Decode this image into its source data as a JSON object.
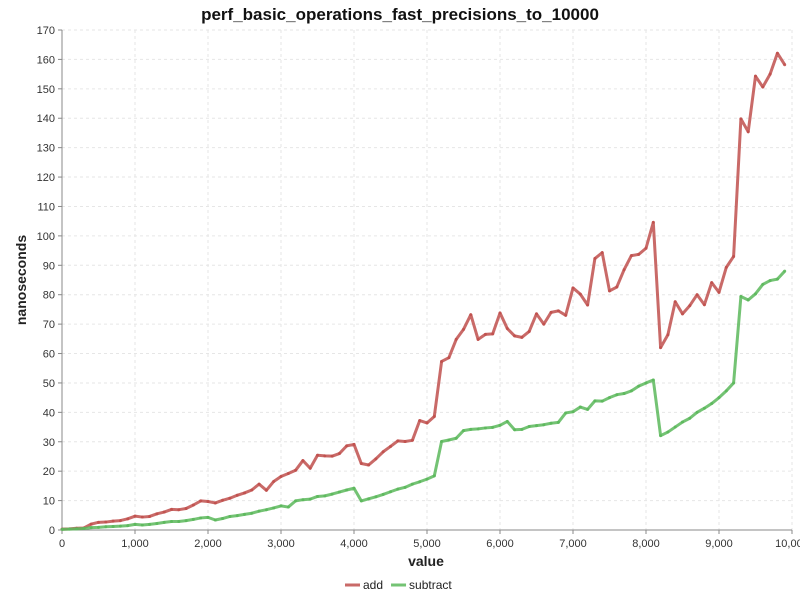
{
  "chart_data": {
    "type": "line",
    "title": "perf_basic_operations_fast_precisions_to_10000",
    "xlabel": "value",
    "ylabel": "nanoseconds",
    "xlim": [
      0,
      10000
    ],
    "ylim": [
      0,
      170
    ],
    "x_ticks": [
      "0",
      "1,000",
      "2,000",
      "3,000",
      "4,000",
      "5,000",
      "6,000",
      "7,000",
      "8,000",
      "9,000",
      "10,000"
    ],
    "y_ticks": [
      "0",
      "10",
      "20",
      "30",
      "40",
      "50",
      "60",
      "70",
      "80",
      "90",
      "100",
      "110",
      "120",
      "130",
      "140",
      "150",
      "160",
      "170"
    ],
    "grid": true,
    "legend_position": "bottom",
    "x": [
      0,
      100,
      200,
      300,
      400,
      500,
      600,
      700,
      800,
      900,
      1000,
      1100,
      1200,
      1300,
      1400,
      1500,
      1600,
      1700,
      1800,
      1900,
      2000,
      2100,
      2200,
      2300,
      2400,
      2500,
      2600,
      2700,
      2800,
      2900,
      3000,
      3100,
      3200,
      3300,
      3400,
      3500,
      3600,
      3700,
      3800,
      3900,
      4000,
      4100,
      4200,
      4300,
      4400,
      4500,
      4600,
      4700,
      4800,
      4900,
      5000,
      5100,
      5200,
      5300,
      5400,
      5500,
      5600,
      5700,
      5800,
      5900,
      6000,
      6100,
      6200,
      6300,
      6400,
      6500,
      6600,
      6700,
      6800,
      6900,
      7000,
      7100,
      7200,
      7300,
      7400,
      7500,
      7600,
      7700,
      7800,
      7900,
      8000,
      8100,
      8200,
      8300,
      8400,
      8500,
      8600,
      8700,
      8800,
      8900,
      9000,
      9100,
      9200,
      9300,
      9400,
      9500,
      9600,
      9700,
      9800,
      9900
    ],
    "series": [
      {
        "name": "add",
        "color": "#c0504d",
        "values": [
          0.3,
          0.4,
          0.6,
          0.7,
          2,
          2.6,
          2.7,
          3,
          3.2,
          3.8,
          4.7,
          4.4,
          4.6,
          5.5,
          6.1,
          7,
          6.9,
          7.3,
          8.5,
          9.9,
          9.7,
          9.2,
          10.1,
          10.8,
          11.8,
          12.6,
          13.6,
          15.6,
          13.5,
          16.5,
          18.2,
          19.2,
          20.3,
          23.6,
          21,
          25.4,
          25.2,
          25.1,
          26,
          28.6,
          29.1,
          22.6,
          22.1,
          24.2,
          26.6,
          28.4,
          30.3,
          30.1,
          30.5,
          37.2,
          36.4,
          38.6,
          57.3,
          58.6,
          64.8,
          68.2,
          73.2,
          64.8,
          66.5,
          66.7,
          73.8,
          68.5,
          66,
          65.5,
          67.5,
          73.5,
          70,
          74,
          74.5,
          73,
          82.3,
          80.2,
          76.5,
          92.3,
          94.3,
          81.3,
          82.6,
          88.5,
          93.3,
          93.7,
          95.8,
          104.6,
          62,
          66.4,
          77.6,
          73.5,
          76.3,
          80,
          76.6,
          84.1,
          80.8,
          89.3,
          93,
          139.8,
          135.4,
          154.3,
          150.6,
          155,
          162.1,
          158.2
        ]
      },
      {
        "name": "subtract",
        "color": "#5cb85c",
        "values": [
          0.2,
          0.3,
          0.4,
          0.5,
          0.8,
          0.9,
          1.1,
          1.2,
          1.3,
          1.5,
          1.9,
          1.7,
          1.9,
          2.2,
          2.6,
          2.9,
          2.9,
          3.2,
          3.6,
          4.1,
          4.3,
          3.4,
          3.9,
          4.6,
          4.9,
          5.3,
          5.7,
          6.4,
          6.9,
          7.5,
          8.2,
          7.8,
          9.9,
          10.3,
          10.5,
          11.4,
          11.6,
          12.2,
          12.9,
          13.6,
          14.2,
          9.9,
          10.6,
          11.3,
          12.1,
          13,
          13.9,
          14.5,
          15.6,
          16.4,
          17.3,
          18.4,
          30.1,
          30.6,
          31.2,
          33.8,
          34.2,
          34.4,
          34.7,
          34.9,
          35.6,
          36.9,
          34.1,
          34.2,
          35.2,
          35.5,
          35.8,
          36.3,
          36.6,
          39.8,
          40.2,
          41.8,
          41,
          43.9,
          43.8,
          45,
          46,
          46.4,
          47.3,
          48.9,
          50,
          51,
          32.1,
          33.3,
          35,
          36.7,
          38,
          40,
          41.4,
          43,
          45,
          47.3,
          50,
          79.4,
          78.2,
          80.3,
          83.5,
          84.8,
          85.3,
          88
        ]
      }
    ]
  }
}
